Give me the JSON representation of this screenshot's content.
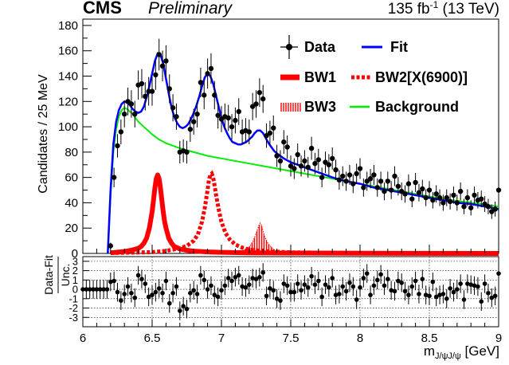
{
  "header": {
    "experiment": "CMS",
    "status": "Preliminary",
    "lumi_prefix": "135 fb",
    "lumi_sup": "-1",
    "lumi_suffix": " (13 TeV)"
  },
  "legend": {
    "data": "Data",
    "fit": "Fit",
    "bw1": "BW1",
    "bw2": "BW2[X(6900)]",
    "bw3": "BW3",
    "background": "Background"
  },
  "colors": {
    "fit": "#0000ff",
    "bw": "#ff0000",
    "background": "#00ee00",
    "data": "#000000"
  },
  "chart_data": [
    {
      "type": "scatter",
      "title": "",
      "xlabel": "m_J/ψJ/ψ [GeV]",
      "ylabel": "Candidates / 25 MeV",
      "xlim": [
        6,
        9
      ],
      "ylim": [
        0,
        185
      ],
      "xticks": [
        6,
        6.5,
        7,
        7.5,
        8,
        8.5,
        9
      ],
      "yticks": [
        0,
        20,
        40,
        60,
        80,
        100,
        120,
        140,
        160,
        180
      ],
      "legend_position": "top-right",
      "series": [
        {
          "name": "Data",
          "style": "points-with-errors",
          "x": [
            6.2,
            6.225,
            6.25,
            6.275,
            6.3,
            6.325,
            6.35,
            6.375,
            6.4,
            6.425,
            6.45,
            6.475,
            6.5,
            6.525,
            6.55,
            6.575,
            6.6,
            6.625,
            6.65,
            6.675,
            6.7,
            6.725,
            6.75,
            6.775,
            6.8,
            6.825,
            6.85,
            6.875,
            6.9,
            6.925,
            6.95,
            6.975,
            7.0,
            7.025,
            7.05,
            7.075,
            7.1,
            7.125,
            7.15,
            7.175,
            7.2,
            7.225,
            7.25,
            7.275,
            7.3,
            7.325,
            7.35,
            7.375,
            7.4,
            7.425,
            7.45,
            7.475,
            7.5,
            7.525,
            7.55,
            7.575,
            7.6,
            7.625,
            7.65,
            7.675,
            7.7,
            7.725,
            7.75,
            7.775,
            7.8,
            7.825,
            7.85,
            7.875,
            7.9,
            7.925,
            7.95,
            7.975,
            8.0,
            8.025,
            8.05,
            8.075,
            8.1,
            8.125,
            8.15,
            8.175,
            8.2,
            8.225,
            8.25,
            8.275,
            8.3,
            8.325,
            8.35,
            8.375,
            8.4,
            8.425,
            8.45,
            8.475,
            8.5,
            8.525,
            8.55,
            8.575,
            8.6,
            8.625,
            8.65,
            8.675,
            8.7,
            8.725,
            8.75,
            8.775,
            8.8,
            8.825,
            8.85,
            8.875,
            8.9,
            8.925,
            8.95,
            8.975,
            9.0
          ],
          "y": [
            6,
            60,
            85,
            96,
            110,
            120,
            118,
            110,
            133,
            134,
            124,
            128,
            128,
            141,
            157,
            148,
            152,
            130,
            115,
            108,
            80,
            81,
            80,
            98,
            104,
            110,
            135,
            125,
            142,
            146,
            125,
            109,
            106,
            108,
            107,
            100,
            105,
            112,
            96,
            97,
            96,
            116,
            118,
            127,
            122,
            93,
            95,
            99,
            77,
            73,
            88,
            84,
            69,
            67,
            78,
            69,
            73,
            68,
            83,
            71,
            74,
            60,
            72,
            70,
            75,
            66,
            58,
            61,
            57,
            62,
            55,
            63,
            67,
            52,
            57,
            59,
            62,
            52,
            57,
            49,
            57,
            50,
            61,
            53,
            49,
            47,
            55,
            43,
            56,
            48,
            51,
            44,
            50,
            42,
            47,
            44,
            40,
            44,
            41,
            46,
            40,
            49,
            37,
            44,
            36,
            46,
            42,
            43,
            39,
            37,
            33,
            35,
            50
          ]
        },
        {
          "name": "Fit",
          "style": "line",
          "x": [
            6.18,
            6.2,
            6.22,
            6.24,
            6.26,
            6.28,
            6.3,
            6.32,
            6.34,
            6.36,
            6.38,
            6.4,
            6.42,
            6.44,
            6.46,
            6.48,
            6.5,
            6.52,
            6.54,
            6.56,
            6.58,
            6.6,
            6.62,
            6.64,
            6.66,
            6.68,
            6.7,
            6.72,
            6.74,
            6.76,
            6.78,
            6.8,
            6.82,
            6.84,
            6.86,
            6.88,
            6.9,
            6.92,
            6.94,
            6.96,
            6.98,
            7.0,
            7.02,
            7.04,
            7.06,
            7.08,
            7.1,
            7.12,
            7.14,
            7.16,
            7.18,
            7.2,
            7.22,
            7.24,
            7.26,
            7.28,
            7.3,
            7.32,
            7.34,
            7.36,
            7.38,
            7.4,
            7.45,
            7.5,
            7.6,
            7.7,
            7.8,
            7.9,
            8.0,
            8.1,
            8.2,
            8.3,
            8.4,
            8.5,
            8.6,
            8.7,
            8.8,
            8.9,
            9.0
          ],
          "y": [
            0,
            50,
            86,
            104,
            113,
            118,
            120,
            119,
            117,
            114,
            112,
            111,
            112,
            116,
            123,
            132,
            142,
            152,
            158,
            157,
            150,
            138,
            126,
            115,
            108,
            103,
            100,
            99,
            100,
            102,
            106,
            111,
            117,
            124,
            132,
            139,
            142,
            140,
            134,
            125,
            116,
            107,
            100,
            95,
            91,
            88,
            87,
            86,
            86,
            87,
            88,
            90,
            92,
            95,
            97,
            97,
            95,
            91,
            87,
            84,
            81,
            79,
            75,
            72,
            68,
            64,
            60,
            57,
            55,
            52,
            50,
            48,
            46,
            44,
            42,
            40,
            39,
            37,
            35
          ]
        },
        {
          "name": "Background",
          "style": "line",
          "x": [
            6.18,
            6.2,
            6.22,
            6.24,
            6.26,
            6.28,
            6.3,
            6.32,
            6.34,
            6.36,
            6.38,
            6.4,
            6.45,
            6.5,
            6.55,
            6.6,
            6.7,
            6.8,
            6.9,
            7.0,
            7.2,
            7.4,
            7.6,
            7.8,
            8.0,
            8.2,
            8.4,
            8.6,
            8.8,
            9.0
          ],
          "y": [
            0,
            45,
            80,
            98,
            108,
            113,
            115,
            114,
            112,
            110,
            107,
            104,
            99,
            94,
            90,
            87,
            83,
            80,
            77,
            75,
            71,
            67,
            63,
            59,
            55,
            51,
            47,
            43,
            40,
            37
          ]
        },
        {
          "name": "BW1",
          "style": "thick-line",
          "x": [
            6.2,
            6.3,
            6.35,
            6.4,
            6.42,
            6.44,
            6.46,
            6.48,
            6.5,
            6.51,
            6.52,
            6.53,
            6.54,
            6.55,
            6.56,
            6.57,
            6.58,
            6.59,
            6.6,
            6.62,
            6.64,
            6.66,
            6.7,
            6.75,
            6.8,
            6.9,
            7.0,
            7.2,
            7.5,
            8.0,
            9.0
          ],
          "y": [
            0.5,
            1.5,
            2.5,
            4,
            5.5,
            8,
            12,
            20,
            33,
            42,
            52,
            59,
            62,
            59,
            52,
            42,
            33,
            25,
            20,
            12,
            8,
            5.5,
            3.5,
            2.5,
            1.8,
            1.2,
            0.9,
            0.5,
            0.3,
            0.1,
            0
          ]
        },
        {
          "name": "BW2[X(6900)]",
          "style": "thick-dashed",
          "x": [
            6.2,
            6.5,
            6.6,
            6.7,
            6.75,
            6.8,
            6.83,
            6.86,
            6.88,
            6.9,
            6.91,
            6.92,
            6.93,
            6.94,
            6.95,
            6.96,
            6.98,
            7.0,
            7.03,
            7.06,
            7.1,
            7.15,
            7.2,
            7.3,
            7.5,
            8.0,
            9.0
          ],
          "y": [
            0.3,
            1,
            2,
            4,
            6,
            10,
            15,
            25,
            36,
            50,
            58,
            62,
            63,
            60,
            54,
            47,
            35,
            25,
            16,
            11,
            7,
            4.5,
            3,
            1.8,
            0.8,
            0.3,
            0
          ],
          "peak_mass": 6900
        },
        {
          "name": "BW3",
          "style": "hatched",
          "x": [
            7.1,
            7.15,
            7.2,
            7.23,
            7.25,
            7.27,
            7.28,
            7.29,
            7.3,
            7.31,
            7.33,
            7.35,
            7.38,
            7.42,
            7.5
          ],
          "y": [
            1,
            2,
            5,
            10,
            16,
            22,
            24,
            22,
            18,
            14,
            9,
            6,
            3,
            1.5,
            0.5
          ]
        }
      ]
    },
    {
      "type": "scatter",
      "title": "",
      "xlabel": "m_J/ψJ/ψ [GeV]",
      "ylabel": "Data-Fit / Unc.",
      "xlim": [
        6,
        9
      ],
      "ylim": [
        -4,
        3.5
      ],
      "xticks": [
        6,
        6.5,
        7,
        7.5,
        8,
        8.5,
        9
      ],
      "yticks": [
        -3,
        -2,
        -1,
        0,
        1,
        2,
        3
      ],
      "grid": true,
      "series": [
        {
          "name": "Data-Fit / Unc.",
          "style": "points-with-errors",
          "x": [
            6.0,
            6.025,
            6.05,
            6.075,
            6.1,
            6.125,
            6.15,
            6.175,
            6.2,
            6.225,
            6.25,
            6.275,
            6.3,
            6.325,
            6.35,
            6.375,
            6.4,
            6.425,
            6.45,
            6.475,
            6.5,
            6.525,
            6.55,
            6.575,
            6.6,
            6.625,
            6.65,
            6.675,
            6.7,
            6.725,
            6.75,
            6.775,
            6.8,
            6.825,
            6.85,
            6.875,
            6.9,
            6.925,
            6.95,
            6.975,
            7.0,
            7.025,
            7.05,
            7.075,
            7.1,
            7.125,
            7.15,
            7.175,
            7.2,
            7.225,
            7.25,
            7.275,
            7.3,
            7.325,
            7.35,
            7.375,
            7.4,
            7.425,
            7.45,
            7.475,
            7.5,
            7.525,
            7.55,
            7.575,
            7.6,
            7.625,
            7.65,
            7.675,
            7.7,
            7.725,
            7.75,
            7.775,
            7.8,
            7.825,
            7.85,
            7.875,
            7.9,
            7.925,
            7.95,
            7.975,
            8.0,
            8.025,
            8.05,
            8.075,
            8.1,
            8.125,
            8.15,
            8.175,
            8.2,
            8.225,
            8.25,
            8.275,
            8.3,
            8.325,
            8.35,
            8.375,
            8.4,
            8.425,
            8.45,
            8.475,
            8.5,
            8.525,
            8.55,
            8.575,
            8.6,
            8.625,
            8.65,
            8.675,
            8.7,
            8.725,
            8.75,
            8.775,
            8.8,
            8.825,
            8.85,
            8.875,
            8.9,
            8.925,
            8.95,
            8.975,
            9.0
          ],
          "y": [
            0,
            0,
            0,
            0,
            0,
            0,
            0,
            0,
            0.8,
            0.9,
            -0.3,
            -1.2,
            -0.5,
            0.3,
            -0.4,
            -0.9,
            1.5,
            1.1,
            0.6,
            -0.8,
            -0.6,
            -0.3,
            0.1,
            -0.4,
            0.9,
            -1.5,
            -0.4,
            0.3,
            -2.3,
            -1.8,
            -2.1,
            -0.4,
            -0.1,
            -0.5,
            1.5,
            1.0,
            0.0,
            0.4,
            -0.6,
            -0.8,
            -0.1,
            0.4,
            1.2,
            0.9,
            1.3,
            1.5,
            0.3,
            0.2,
            0.5,
            1.2,
            1.1,
            1.3,
            1.8,
            -0.7,
            0.1,
            -0.1,
            -1.0,
            -1.2,
            0.6,
            0.4,
            -0.3,
            -0.3,
            0.6,
            -0.1,
            0.5,
            0.2,
            1.4,
            0.5,
            0.9,
            -0.8,
            0.5,
            0.2,
            1.2,
            -0.6,
            -0.5,
            0.3,
            -0.2,
            0.7,
            0.3,
            -1.1,
            0.2,
            1.2,
            1.7,
            -0.6,
            0.4,
            1.0,
            1.6,
            0.4,
            1.1,
            -0.1,
            -0.2,
            0.9,
            0.7,
            -0.2,
            -0.6,
            0.3,
            0.9,
            -0.5,
            1.1,
            -0.6,
            -0.7,
            0.8,
            -0.8,
            -0.6,
            -0.5,
            -1.0,
            0.1,
            -0.3,
            0.0,
            0.6,
            -1.1,
            0.6,
            0.5,
            0.4,
            0.3,
            -1.3,
            0.6,
            -0.4,
            -0.9,
            -0.7,
            1.7
          ]
        }
      ]
    }
  ]
}
